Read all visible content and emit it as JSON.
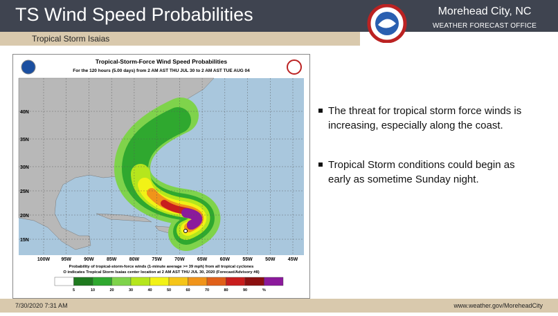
{
  "header": {
    "title": "TS Wind Speed Probabilities",
    "subtitle": "Tropical Storm Isaias",
    "office_city": "Morehead City, NC",
    "office_type": "WEATHER FORECAST OFFICE"
  },
  "map": {
    "title": "Tropical-Storm-Force Wind Speed Probabilities",
    "subtitle": "For the 120 hours (5.00 days) from 2 AM AST THU JUL 30 to 2 AM AST TUE AUG 04",
    "lat_labels": [
      "40N",
      "35N",
      "30N",
      "25N",
      "20N",
      "15N"
    ],
    "lon_labels": [
      "100W",
      "95W",
      "90W",
      "85W",
      "80W",
      "75W",
      "70W",
      "65W",
      "60W",
      "55W",
      "50W",
      "45W"
    ],
    "caption": [
      "Probability of tropical-storm-force winds (1-minute average >= 39 mph) from all tropical cyclones",
      "O indicates Tropical Storm Isaias center location at 2 AM AST THU JUL 30, 2020 (Forecast/Advisory #8)"
    ],
    "scale_labels": [
      "5",
      "10",
      "20",
      "30",
      "40",
      "50",
      "60",
      "70",
      "80",
      "90",
      "%"
    ],
    "scale_colors": [
      "#ffffff",
      "#1f7a1f",
      "#2fa82f",
      "#7fd34b",
      "#b5e61d",
      "#f2f216",
      "#f5c518",
      "#f0941a",
      "#e0601a",
      "#c81e1e",
      "#8b1010",
      "#8b1a9b"
    ]
  },
  "bullets": [
    "The threat for tropical storm force winds is increasing, especially along the coast.",
    "Tropical Storm conditions could begin as early as sometime Sunday night."
  ],
  "footer": {
    "date": "7/30/2020 7:31 AM",
    "url": "www.weather.gov/MoreheadCity"
  }
}
